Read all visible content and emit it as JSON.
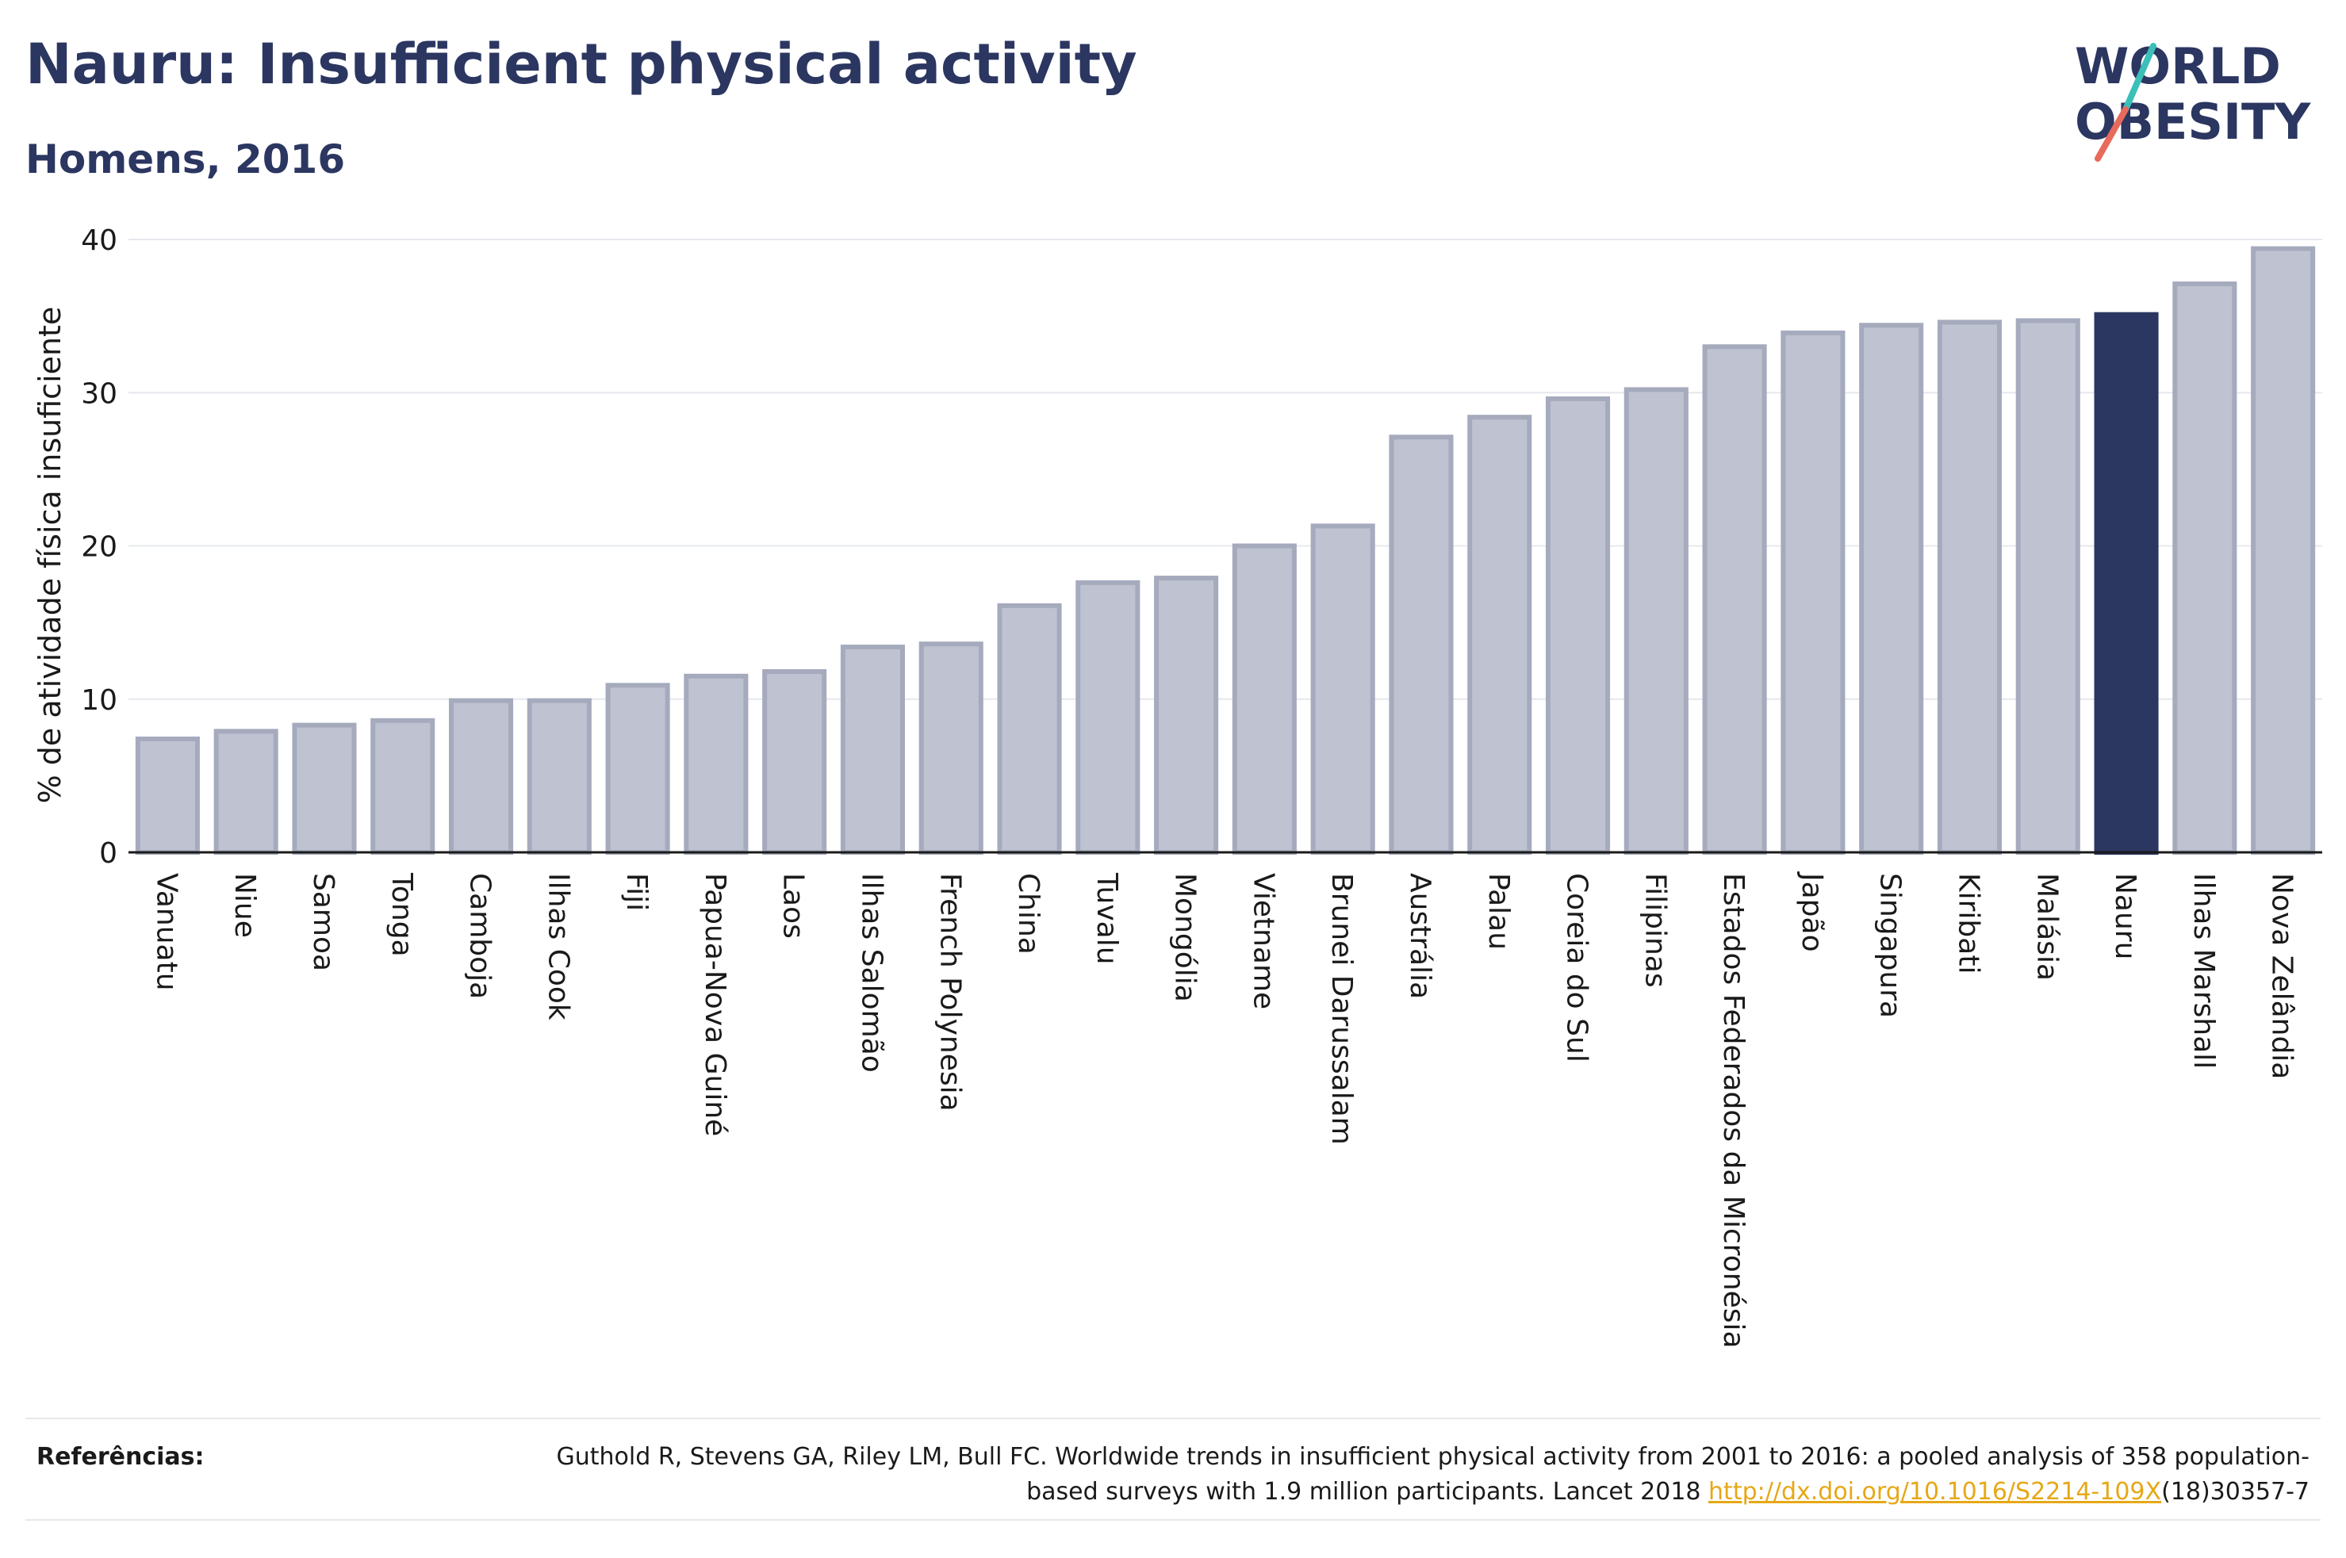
{
  "header": {
    "title": "Nauru: Insufficient physical activity",
    "subtitle": "Homens, 2016"
  },
  "logo": {
    "line1": "WORLD",
    "line2": "OBESITY",
    "slash_colors": [
      "#3bbfb9",
      "#e86a5a"
    ]
  },
  "chart_data": {
    "type": "bar",
    "ylabel": "% de atividade física insuficiente",
    "xlabel": "",
    "ylim": [
      0,
      40
    ],
    "yticks": [
      0,
      10,
      20,
      30,
      40
    ],
    "grid": true,
    "highlight": "Nauru",
    "colors": {
      "bar_fill": "#bfc3d1",
      "bar_stroke": "#a5aabd",
      "highlight": "#2b3661",
      "grid": "#e6e8ee",
      "axis": "#1a1a1a"
    },
    "categories": [
      "Vanuatu",
      "Niue",
      "Samoa",
      "Tonga",
      "Camboja",
      "Ilhas Cook",
      "Fiji",
      "Papua-Nova Guiné",
      "Laos",
      "Ilhas Salomão",
      "French Polynesia",
      "China",
      "Tuvalu",
      "Mongólia",
      "Vietname",
      "Brunei Darussalam",
      "Austrália",
      "Palau",
      "Coreia do Sul",
      "Filipinas",
      "Estados Federados da Micronésia",
      "Japão",
      "Singapura",
      "Kiribati",
      "Malásia",
      "Nauru",
      "Ilhas Marshall",
      "Nova Zelândia"
    ],
    "values": [
      7.4,
      7.9,
      8.3,
      8.6,
      9.9,
      9.9,
      10.9,
      11.5,
      11.8,
      13.4,
      13.6,
      16.1,
      17.6,
      17.9,
      20.0,
      21.3,
      27.1,
      28.4,
      29.6,
      30.2,
      33.0,
      33.9,
      34.4,
      34.6,
      34.7,
      35.1,
      37.1,
      39.4
    ]
  },
  "references": {
    "label": "Referências:",
    "text_before_link": "Guthold R, Stevens GA, Riley LM, Bull FC. Worldwide trends in insufficient physical activity from 2001 to 2016: a pooled analysis of 358 population-based surveys with 1.9 million participants. Lancet 2018 ",
    "link_text": "http://dx.doi.org/10.1016/S2214-109X",
    "text_after_link": "(18)30357-7"
  }
}
